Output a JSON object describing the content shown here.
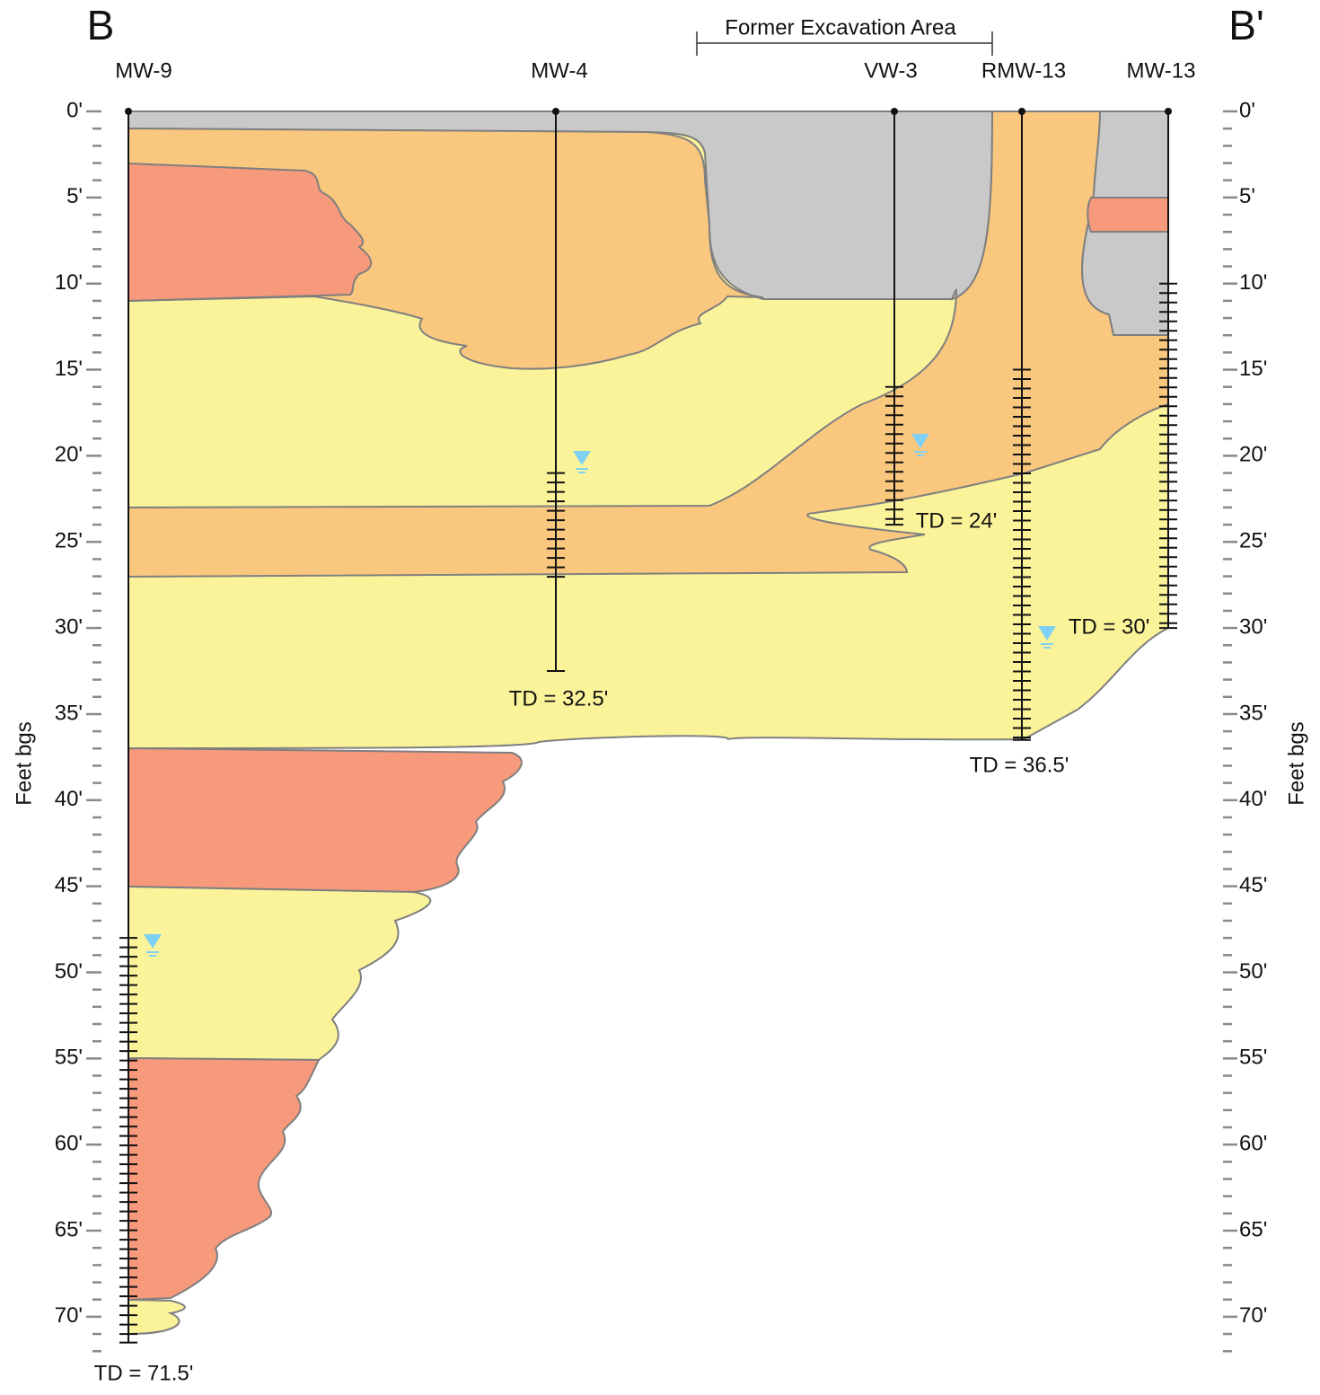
{
  "title_left": "B",
  "title_right": "B'",
  "excavation_label": "Former Excavation Area",
  "axis_label": "Feet bgs",
  "depth_labels": [
    "0'",
    "5'",
    "10'",
    "15'",
    "20'",
    "25'",
    "30'",
    "35'",
    "40'",
    "45'",
    "50'",
    "55'",
    "60'",
    "65'",
    "70'"
  ],
  "wells": [
    {
      "name": "MW-9",
      "td": "TD = 71.5'"
    },
    {
      "name": "MW-4",
      "td": "TD = 32.5'"
    },
    {
      "name": "VW-3",
      "td": "TD = 24'"
    },
    {
      "name": "RMW-13",
      "td": "TD = 36.5'"
    },
    {
      "name": "MW-13",
      "td": "TD = 30'"
    }
  ]
}
